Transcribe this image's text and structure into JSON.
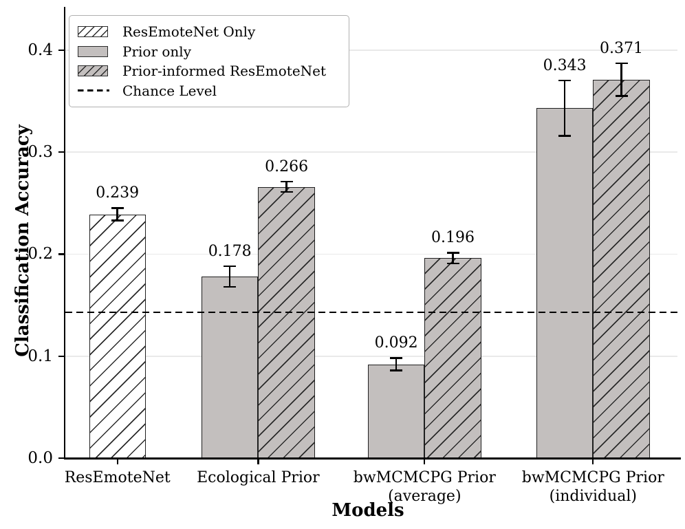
{
  "figure": {
    "ylabel": "Classification Accuracy",
    "xlabel": "Models"
  },
  "chart_data": {
    "type": "bar",
    "title": "",
    "xlabel": "Models",
    "ylabel": "Classification Accuracy",
    "categories": [
      [
        "ResEmoteNet"
      ],
      [
        "Ecological Prior"
      ],
      [
        "bwMCMCPG Prior",
        "(average)"
      ],
      [
        "bwMCMCPG Prior",
        "(individual)"
      ]
    ],
    "series": [
      {
        "name": "ResEmoteNet Only",
        "style": "hatched-white",
        "bars": [
          {
            "cat": 0,
            "slot": "center",
            "value": 0.239,
            "error": 0.007,
            "label": "0.239"
          }
        ]
      },
      {
        "name": "Prior only",
        "style": "solid-gray",
        "bars": [
          {
            "cat": 1,
            "slot": "left",
            "value": 0.178,
            "error": 0.011,
            "label": "0.178"
          },
          {
            "cat": 2,
            "slot": "left",
            "value": 0.092,
            "error": 0.007,
            "label": "0.092"
          },
          {
            "cat": 3,
            "slot": "left",
            "value": 0.343,
            "error": 0.028,
            "label": "0.343"
          }
        ]
      },
      {
        "name": "Prior-informed ResEmoteNet",
        "style": "hatched-gray",
        "bars": [
          {
            "cat": 1,
            "slot": "right",
            "value": 0.266,
            "error": 0.006,
            "label": "0.266"
          },
          {
            "cat": 2,
            "slot": "right",
            "value": 0.196,
            "error": 0.006,
            "label": "0.196"
          },
          {
            "cat": 3,
            "slot": "right",
            "value": 0.371,
            "error": 0.017,
            "label": "0.371"
          }
        ]
      }
    ],
    "chance_level": 0.143,
    "ylim": [
      0,
      0.4424
    ],
    "yticks": [
      {
        "value": 0.0,
        "label": "0.0"
      },
      {
        "value": 0.1,
        "label": "0.1"
      },
      {
        "value": 0.2,
        "label": "0.2"
      },
      {
        "value": 0.3,
        "label": "0.3"
      },
      {
        "value": 0.4,
        "label": "0.4"
      }
    ],
    "grid": "horizontal",
    "legend": {
      "position": "upper left",
      "items": [
        {
          "label": "ResEmoteNet Only",
          "swatch": "hatched-white"
        },
        {
          "label": "Prior only",
          "swatch": "solid-gray"
        },
        {
          "label": "Prior-informed ResEmoteNet",
          "swatch": "hatched-gray"
        },
        {
          "label": "Chance Level",
          "swatch": "dashed-line"
        }
      ]
    },
    "colors": {
      "bar_gray": "#c3bfbe",
      "bar_white": "#ffffff",
      "bar_edge": "#1f1f1f",
      "grid": "#e9e9e9",
      "chance_line": "#000000",
      "text": "#000000"
    }
  }
}
